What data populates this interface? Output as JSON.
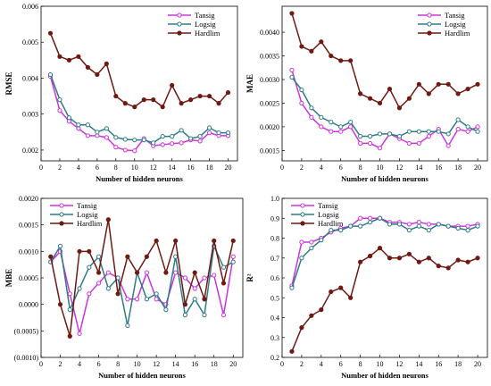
{
  "colors": {
    "Tansig": "#cc33dd",
    "Logsig": "#2e7b86",
    "Hardlim": "#6e1a12"
  },
  "chart_data": [
    {
      "type": "line",
      "panel": "top-left",
      "xlabel": "Number of hidden neurons",
      "ylabel": "RMSE",
      "xlim": [
        0,
        21
      ],
      "ylim": [
        0.0017,
        0.006
      ],
      "xticks": [
        0,
        2,
        4,
        6,
        8,
        10,
        12,
        14,
        16,
        18,
        20
      ],
      "yticks": [
        0.002,
        0.003,
        0.004,
        0.005,
        0.006
      ],
      "ytick_labels": [
        "0.002",
        "0.003",
        "0.004",
        "0.005",
        "0.006"
      ],
      "legend": "top-right",
      "x": [
        1,
        2,
        3,
        4,
        5,
        6,
        7,
        8,
        9,
        10,
        11,
        12,
        13,
        14,
        15,
        16,
        17,
        18,
        19,
        20
      ],
      "series": [
        {
          "name": "Tansig",
          "values": [
            0.00405,
            0.0031,
            0.0028,
            0.0026,
            0.0024,
            0.0024,
            0.00235,
            0.00208,
            0.002,
            0.00198,
            0.00232,
            0.00212,
            0.00215,
            0.00218,
            0.0022,
            0.00228,
            0.00225,
            0.00248,
            0.0024,
            0.0024
          ]
        },
        {
          "name": "Logsig",
          "values": [
            0.0041,
            0.0034,
            0.0029,
            0.0027,
            0.0027,
            0.0025,
            0.0026,
            0.00235,
            0.0023,
            0.00228,
            0.00228,
            0.0022,
            0.00238,
            0.00238,
            0.00255,
            0.00232,
            0.00238,
            0.00262,
            0.00248,
            0.00248
          ]
        },
        {
          "name": "Hardlim",
          "values": [
            0.00525,
            0.0046,
            0.0045,
            0.0046,
            0.0043,
            0.0041,
            0.0044,
            0.0035,
            0.0033,
            0.0032,
            0.0034,
            0.0034,
            0.0032,
            0.0038,
            0.0033,
            0.0034,
            0.0035,
            0.0035,
            0.0033,
            0.0036
          ]
        }
      ]
    },
    {
      "type": "line",
      "panel": "top-right",
      "xlabel": "Number of hidden neurons",
      "ylabel": "MAE",
      "xlim": [
        0,
        21
      ],
      "ylim": [
        0.00128,
        0.00455
      ],
      "xticks": [
        0,
        2,
        4,
        6,
        8,
        10,
        12,
        14,
        16,
        18,
        20
      ],
      "yticks": [
        0.0015,
        0.002,
        0.0025,
        0.003,
        0.0035,
        0.004
      ],
      "ytick_labels": [
        "0.0015",
        "0.0020",
        "0.0025",
        "0.0030",
        "0.0035",
        "0.0040"
      ],
      "legend": "top-right",
      "x": [
        1,
        2,
        3,
        4,
        5,
        6,
        7,
        8,
        9,
        10,
        11,
        12,
        13,
        14,
        15,
        16,
        17,
        18,
        19,
        20
      ],
      "series": [
        {
          "name": "Tansig",
          "values": [
            0.0032,
            0.0025,
            0.0022,
            0.002,
            0.0019,
            0.0019,
            0.002,
            0.00165,
            0.00165,
            0.00155,
            0.00185,
            0.00175,
            0.00165,
            0.00165,
            0.0018,
            0.00195,
            0.0016,
            0.00195,
            0.0019,
            0.002
          ]
        },
        {
          "name": "Logsig",
          "values": [
            0.00305,
            0.00278,
            0.0024,
            0.0022,
            0.0021,
            0.002,
            0.0021,
            0.0018,
            0.0018,
            0.00185,
            0.00185,
            0.0018,
            0.0019,
            0.0019,
            0.0019,
            0.0019,
            0.00185,
            0.00215,
            0.002,
            0.0019
          ]
        },
        {
          "name": "Hardlim",
          "values": [
            0.0044,
            0.0037,
            0.0036,
            0.0038,
            0.0035,
            0.0034,
            0.0034,
            0.0027,
            0.0026,
            0.0025,
            0.0028,
            0.0024,
            0.0026,
            0.0029,
            0.0027,
            0.0029,
            0.0029,
            0.0027,
            0.0028,
            0.0029
          ]
        }
      ]
    },
    {
      "type": "line",
      "panel": "bottom-left",
      "xlabel": "Number of hidden neurons",
      "ylabel": "MBE",
      "xlim": [
        0,
        21
      ],
      "ylim": [
        -0.001,
        0.002
      ],
      "xticks": [
        0,
        2,
        4,
        6,
        8,
        10,
        12,
        14,
        16,
        18,
        20
      ],
      "yticks": [
        -0.001,
        -0.0005,
        0,
        0.0005,
        0.001,
        0.0015,
        0.002
      ],
      "ytick_labels": [
        "(0.0010)",
        "(0.0005)",
        "0.0000",
        "0.0005",
        "0.0010",
        "0.0015",
        "0.0020"
      ],
      "legend": "top-left",
      "x": [
        1,
        2,
        3,
        4,
        5,
        6,
        7,
        8,
        9,
        10,
        11,
        12,
        13,
        14,
        15,
        16,
        17,
        18,
        19,
        20
      ],
      "series": [
        {
          "name": "Tansig",
          "values": [
            0.0008,
            0.001,
            0.0002,
            -0.00055,
            0.0002,
            0.0004,
            0.0006,
            0.0005,
            0.0001,
            0.0001,
            0.0006,
            0.0001,
            0.0,
            0.0006,
            0.0005,
            0.0003,
            0.0005,
            0.00055,
            -0.0002,
            0.0009
          ]
        },
        {
          "name": "Logsig",
          "values": [
            0.0008,
            0.0011,
            -0.0001,
            0.0003,
            0.0007,
            0.0009,
            0.0003,
            0.0005,
            -0.0004,
            0.0006,
            0.0001,
            0.0002,
            -0.0001,
            0.0009,
            -0.0002,
            0.0001,
            -0.0002,
            0.0011,
            0.0007,
            0.0008
          ]
        },
        {
          "name": "Hardlim",
          "values": [
            0.0009,
            0.0,
            -0.0006,
            0.001,
            0.001,
            0.0006,
            0.0016,
            0.0002,
            0.0009,
            0.0006,
            0.0009,
            0.0012,
            0.0006,
            0.0012,
            0.0,
            0.0006,
            0.0001,
            0.0012,
            0.0004,
            0.0012
          ]
        }
      ]
    },
    {
      "type": "line",
      "panel": "bottom-right",
      "xlabel": "Number of hidden neurons",
      "ylabel": "R²",
      "xlim": [
        0,
        21
      ],
      "ylim": [
        0.2,
        1.0
      ],
      "xticks": [
        0,
        2,
        4,
        6,
        8,
        10,
        12,
        14,
        16,
        18,
        20
      ],
      "yticks": [
        0.2,
        0.3,
        0.4,
        0.5,
        0.6,
        0.7,
        0.8,
        0.9,
        1.0
      ],
      "ytick_labels": [
        "0.2",
        "0.3",
        "0.4",
        "0.5",
        "0.6",
        "0.7",
        "0.8",
        "0.9",
        "1.0"
      ],
      "legend": "top-left",
      "x": [
        1,
        2,
        3,
        4,
        5,
        6,
        7,
        8,
        9,
        10,
        11,
        12,
        13,
        14,
        15,
        16,
        17,
        18,
        19,
        20
      ],
      "series": [
        {
          "name": "Tansig",
          "values": [
            0.56,
            0.78,
            0.78,
            0.8,
            0.83,
            0.85,
            0.86,
            0.9,
            0.9,
            0.9,
            0.88,
            0.88,
            0.87,
            0.88,
            0.87,
            0.87,
            0.86,
            0.86,
            0.86,
            0.87
          ]
        },
        {
          "name": "Logsig",
          "values": [
            0.55,
            0.7,
            0.75,
            0.79,
            0.84,
            0.84,
            0.86,
            0.86,
            0.88,
            0.9,
            0.87,
            0.87,
            0.84,
            0.86,
            0.84,
            0.87,
            0.86,
            0.85,
            0.84,
            0.86
          ]
        },
        {
          "name": "Hardlim",
          "values": [
            0.23,
            0.35,
            0.41,
            0.44,
            0.53,
            0.55,
            0.5,
            0.68,
            0.71,
            0.75,
            0.7,
            0.7,
            0.72,
            0.68,
            0.7,
            0.66,
            0.65,
            0.69,
            0.68,
            0.7
          ]
        }
      ]
    }
  ]
}
